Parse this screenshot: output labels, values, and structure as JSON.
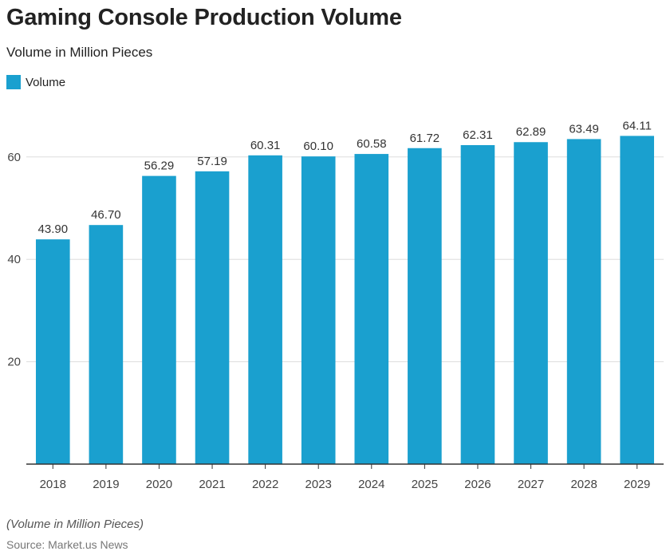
{
  "title": "Gaming Console Production Volume",
  "subtitle": "Volume in Million Pieces",
  "note": "(Volume in Million Pieces)",
  "source": "Source: Market.us News",
  "colors": {
    "bar": "#1aa0cf",
    "grid": "#dddddd",
    "axis": "#333333"
  },
  "chart_data": {
    "type": "bar",
    "categories": [
      "2018",
      "2019",
      "2020",
      "2021",
      "2022",
      "2023",
      "2024",
      "2025",
      "2026",
      "2027",
      "2028",
      "2029"
    ],
    "series": [
      {
        "name": "Volume",
        "values": [
          43.9,
          46.7,
          56.29,
          57.19,
          60.31,
          60.1,
          60.58,
          61.72,
          62.31,
          62.89,
          63.49,
          64.11
        ],
        "labels": [
          "43.90",
          "46.70",
          "56.29",
          "57.19",
          "60.31",
          "60.10",
          "60.58",
          "61.72",
          "62.31",
          "62.89",
          "63.49",
          "64.11"
        ]
      }
    ],
    "y_ticks": [
      20,
      40,
      60
    ],
    "ylim": [
      0,
      70
    ],
    "grid": true,
    "legend": "top-left"
  }
}
